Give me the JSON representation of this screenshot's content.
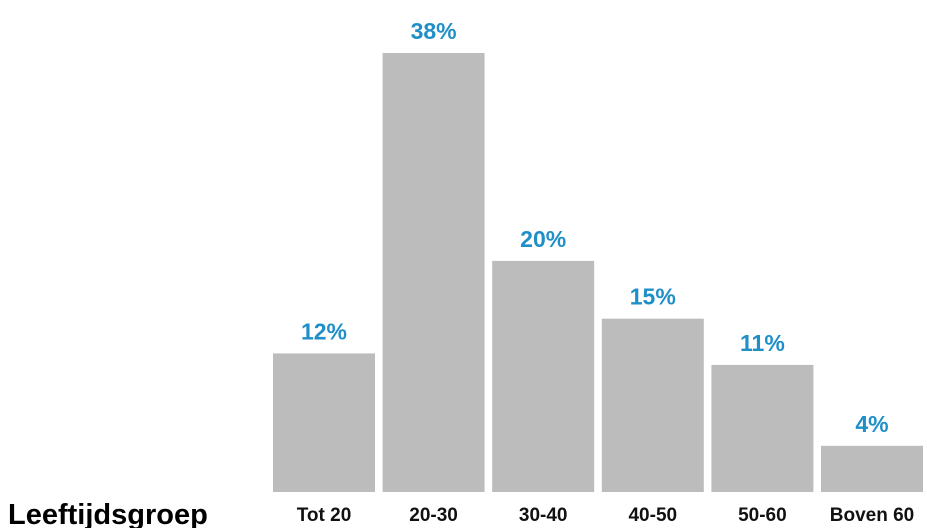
{
  "chart_data": {
    "type": "bar",
    "xlabel": "Leeftijdsgroep",
    "ylabel": "",
    "categories": [
      "Tot 20",
      "20-30",
      "30-40",
      "40-50",
      "50-60",
      "Boven 60"
    ],
    "values": [
      12,
      38,
      20,
      15,
      11,
      4
    ],
    "value_labels": [
      "12%",
      "38%",
      "20%",
      "15%",
      "11%",
      "4%"
    ],
    "unit": "%",
    "ylim": [
      0,
      40
    ],
    "grid": false,
    "legend": "none",
    "colors": {
      "bar": "#bcbcbc",
      "value_label": "#1f8fc8",
      "tick_label": "#111111"
    }
  }
}
